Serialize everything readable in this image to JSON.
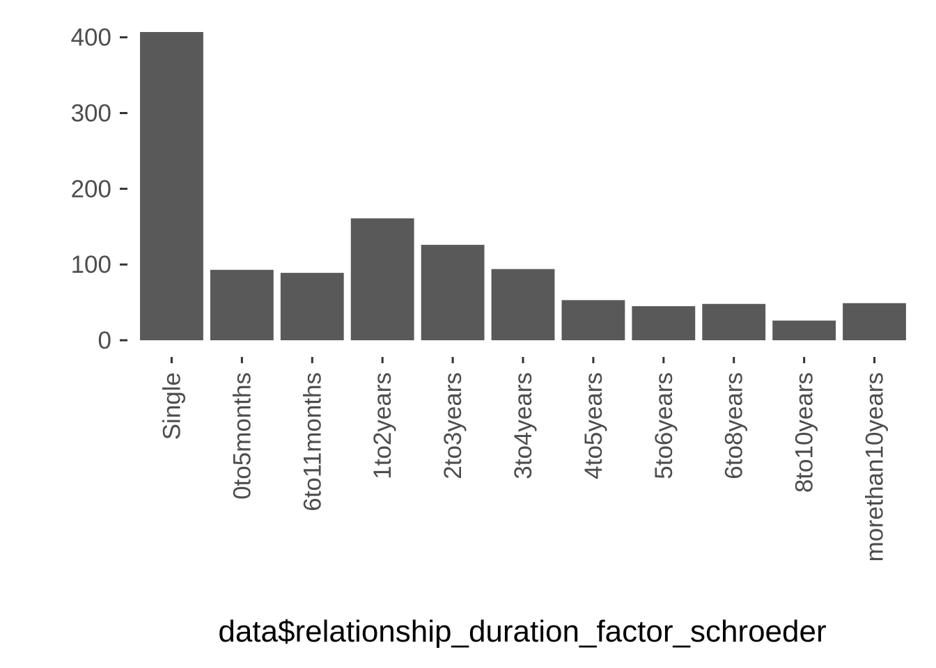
{
  "chart_data": {
    "type": "bar",
    "categories": [
      "Single",
      "0to5months",
      "6to11months",
      "1to2years",
      "2to3years",
      "3to4years",
      "4to5years",
      "5to6years",
      "6to8years",
      "8to10years",
      "morethan10years"
    ],
    "values": [
      407,
      93,
      89,
      161,
      126,
      94,
      53,
      45,
      48,
      26,
      49
    ],
    "title": "",
    "xlabel": "data$relationship_duration_factor_schroeder",
    "ylabel": "",
    "ylim": [
      0,
      407
    ],
    "yticks": [
      0,
      100,
      200,
      300,
      400
    ],
    "grid": false,
    "bar_color": "#595959",
    "tick_color": "#333333",
    "label_color": "#4d4d4d"
  }
}
